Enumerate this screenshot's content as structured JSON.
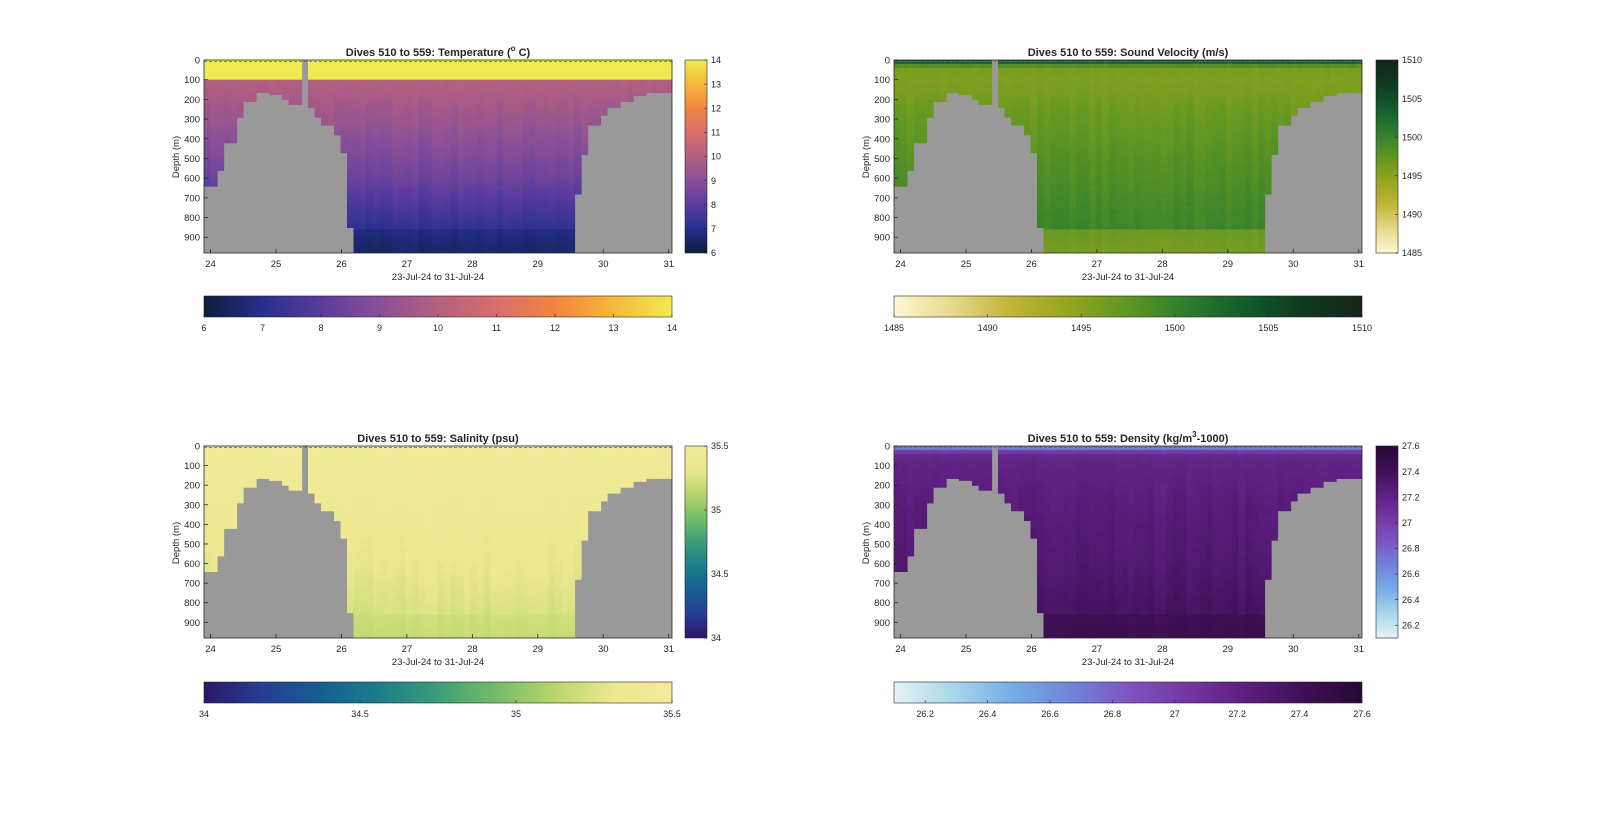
{
  "chart_data": [
    {
      "type": "heatmap",
      "title": "Dives 510 to 559: Temperature (",
      "title_sup": "o",
      "title_end": " C)",
      "xlabel": "23-Jul-24 to 31-Jul-24",
      "ylabel": "Depth (m)",
      "xlim": [
        23.9,
        31.05
      ],
      "ylim": [
        0,
        980
      ],
      "x_ticks": [
        "24",
        "25",
        "26",
        "27",
        "28",
        "29",
        "30",
        "31"
      ],
      "y_ticks": [
        "0",
        "100",
        "200",
        "300",
        "400",
        "500",
        "600",
        "700",
        "800",
        "900"
      ],
      "colorbar_ticks": [
        "6",
        "7",
        "8",
        "9",
        "10",
        "11",
        "12",
        "13",
        "14"
      ],
      "colorbar_ticks_h": [
        "6",
        "7",
        "8",
        "9",
        "10",
        "11",
        "12",
        "13",
        "14"
      ],
      "clim": [
        6,
        14
      ],
      "colormap": [
        "#0c1d3c",
        "#272f8e",
        "#5a3c9c",
        "#8a4f98",
        "#b4607e",
        "#d86e6c",
        "#f3833f",
        "#f6b83a",
        "#f0ea52"
      ],
      "field": "temperature",
      "depth_profile": [
        600,
        100,
        10,
        9.4,
        8.4,
        7.2,
        6.6
      ],
      "near_floor_value": 6.4
    },
    {
      "type": "heatmap",
      "title": "Dives 510 to 559: Sound Velocity (m/s)",
      "title_sup": "",
      "title_end": "",
      "xlabel": "23-Jul-24 to 31-Jul-24",
      "ylabel": "Depth (m)",
      "xlim": [
        23.9,
        31.05
      ],
      "ylim": [
        0,
        980
      ],
      "x_ticks": [
        "24",
        "25",
        "26",
        "27",
        "28",
        "29",
        "30",
        "31"
      ],
      "y_ticks": [
        "0",
        "100",
        "200",
        "300",
        "400",
        "500",
        "600",
        "700",
        "800",
        "900"
      ],
      "colorbar_ticks": [
        "1485",
        "1490",
        "1495",
        "1500",
        "1505",
        "1510"
      ],
      "colorbar_ticks_h": [
        "1485",
        "1490",
        "1495",
        "1500",
        "1505",
        "1510"
      ],
      "clim": [
        1485,
        1510
      ],
      "colormap": [
        "#fdf8d3",
        "#e5d98b",
        "#c2b437",
        "#94a51c",
        "#5f9623",
        "#2d7d2e",
        "#125c2c",
        "#0e3a1e",
        "#16241a"
      ],
      "field": "sound",
      "depth_profile": [
        1505,
        1496,
        1495.5,
        1497,
        1498.5,
        1499.5,
        1498
      ],
      "near_floor_value": 1493
    },
    {
      "type": "heatmap",
      "title": "Dives 510 to 559: Salinity (psu)",
      "title_sup": "",
      "title_end": "",
      "xlabel": "23-Jul-24 to 31-Jul-24",
      "ylabel": "Depth (m)",
      "xlim": [
        23.9,
        31.05
      ],
      "ylim": [
        0,
        980
      ],
      "x_ticks": [
        "24",
        "25",
        "26",
        "27",
        "28",
        "29",
        "30",
        "31"
      ],
      "y_ticks": [
        "0",
        "100",
        "200",
        "300",
        "400",
        "500",
        "600",
        "700",
        "800",
        "900"
      ],
      "colorbar_ticks": [
        "34",
        "34.5",
        "35",
        "35.5"
      ],
      "colorbar_ticks_h": [
        "34",
        "34.5",
        "35",
        "35.5"
      ],
      "clim": [
        34,
        35.5
      ],
      "colormap": [
        "#2a1767",
        "#263d95",
        "#155f91",
        "#1b7e8a",
        "#3d9d78",
        "#73bd69",
        "#b8d66b",
        "#ece890",
        "#f3ea9a"
      ],
      "field": "salinity",
      "depth_profile": [
        35.48,
        35.45,
        35.43,
        35.38,
        35.31,
        35.24,
        35.18
      ],
      "near_floor_value": 35.17
    },
    {
      "type": "heatmap",
      "title": "Dives 510 to 559: Density (kg/m",
      "title_sup": "3",
      "title_end": "-1000)",
      "xlabel": "23-Jul-24 to 31-Jul-24",
      "ylabel": "Depth (m)",
      "xlim": [
        23.9,
        31.05
      ],
      "ylim": [
        0,
        980
      ],
      "x_ticks": [
        "24",
        "25",
        "26",
        "27",
        "28",
        "29",
        "30",
        "31"
      ],
      "y_ticks": [
        "0",
        "100",
        "200",
        "300",
        "400",
        "500",
        "600",
        "700",
        "800",
        "900"
      ],
      "colorbar_ticks": [
        "26.2",
        "26.4",
        "26.6",
        "26.8",
        "27",
        "27.2",
        "27.4",
        "27.6"
      ],
      "colorbar_ticks_h": [
        "26.2",
        "26.4",
        "26.6",
        "26.8",
        "27",
        "27.2",
        "27.4",
        "27.6"
      ],
      "clim": [
        26.1,
        27.6
      ],
      "colormap": [
        "#e6f3f5",
        "#a9d7ea",
        "#76aee6",
        "#6f85db",
        "#7e55c3",
        "#7437a3",
        "#5d1f80",
        "#3f0f56",
        "#280833"
      ],
      "field": "density",
      "depth_profile": [
        26.55,
        27.15,
        27.2,
        27.25,
        27.3,
        27.36,
        27.42
      ],
      "near_floor_value": 27.48
    }
  ],
  "seafloor": {
    "color": "#999999",
    "left_ridge": [
      {
        "x": 23.9,
        "depth": 640
      },
      {
        "x": 24.05,
        "depth": 560
      },
      {
        "x": 24.2,
        "depth": 420
      },
      {
        "x": 24.35,
        "depth": 290
      },
      {
        "x": 24.5,
        "depth": 210
      },
      {
        "x": 24.65,
        "depth": 165
      },
      {
        "x": 24.85,
        "depth": 175
      },
      {
        "x": 25.05,
        "depth": 200
      },
      {
        "x": 25.2,
        "depth": 225
      }
    ],
    "spike": {
      "x0": 25.35,
      "x1": 25.47,
      "depth": 0
    },
    "mid_slope": [
      {
        "x": 25.47,
        "depth": 240
      },
      {
        "x": 25.55,
        "depth": 290
      },
      {
        "x": 25.7,
        "depth": 330
      },
      {
        "x": 25.85,
        "depth": 380
      },
      {
        "x": 25.95,
        "depth": 470
      },
      {
        "x": 26.05,
        "depth": 850
      },
      {
        "x": 26.2,
        "depth": 980
      }
    ],
    "right_ridge": [
      {
        "x": 29.5,
        "depth": 980
      },
      {
        "x": 29.55,
        "depth": 680
      },
      {
        "x": 29.65,
        "depth": 480
      },
      {
        "x": 29.8,
        "depth": 330
      },
      {
        "x": 29.95,
        "depth": 280
      },
      {
        "x": 30.1,
        "depth": 240
      },
      {
        "x": 30.3,
        "depth": 210
      },
      {
        "x": 30.5,
        "depth": 180
      },
      {
        "x": 30.65,
        "depth": 165
      },
      {
        "x": 31.05,
        "depth": 155
      }
    ]
  }
}
